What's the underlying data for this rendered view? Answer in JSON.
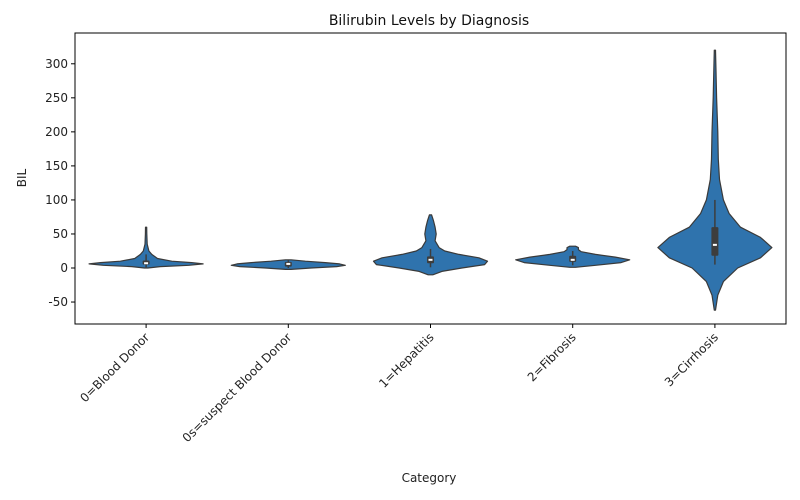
{
  "chart_data": {
    "type": "violin",
    "title": "Bilirubin Levels by Diagnosis",
    "xlabel": "Category",
    "ylabel": "BIL",
    "ylim": [
      -70,
      340
    ],
    "yticks": [
      -50,
      0,
      50,
      100,
      150,
      200,
      250,
      300
    ],
    "grid": false,
    "color": "#2f73ad",
    "categories": [
      "0=Blood Donor",
      "0s=suspect Blood Donor",
      "1=Hepatitis",
      "2=Fibrosis",
      "3=Cirrhosis"
    ],
    "series": [
      {
        "category": "0=Blood Donor",
        "median": 7,
        "q1": 5,
        "q3": 11,
        "whisker_low": 1,
        "whisker_high": 20,
        "min": 0,
        "max": 60,
        "profile": [
          [
            0,
            0.03
          ],
          [
            2,
            0.25
          ],
          [
            4,
            0.75
          ],
          [
            6,
            1.0
          ],
          [
            8,
            0.8
          ],
          [
            10,
            0.45
          ],
          [
            14,
            0.2
          ],
          [
            20,
            0.1
          ],
          [
            25,
            0.05
          ],
          [
            35,
            0.02
          ],
          [
            50,
            0.012
          ],
          [
            60,
            0.01
          ]
        ]
      },
      {
        "category": "0s=suspect Blood Donor",
        "median": 6,
        "q1": 2,
        "q3": 9,
        "whisker_low": 0,
        "whisker_high": 11,
        "min": -2,
        "max": 12,
        "profile": [
          [
            -2,
            0.05
          ],
          [
            0,
            0.4
          ],
          [
            2,
            0.85
          ],
          [
            4,
            1.0
          ],
          [
            6,
            0.9
          ],
          [
            8,
            0.65
          ],
          [
            10,
            0.3
          ],
          [
            12,
            0.05
          ]
        ]
      },
      {
        "category": "1=Hepatitis",
        "median": 12,
        "q1": 7,
        "q3": 17,
        "whisker_low": 1,
        "whisker_high": 28,
        "min": -10,
        "max": 78,
        "profile": [
          [
            -10,
            0.04
          ],
          [
            -5,
            0.2
          ],
          [
            0,
            0.55
          ],
          [
            5,
            0.95
          ],
          [
            10,
            1.0
          ],
          [
            15,
            0.85
          ],
          [
            20,
            0.5
          ],
          [
            25,
            0.25
          ],
          [
            30,
            0.15
          ],
          [
            40,
            0.08
          ],
          [
            50,
            0.1
          ],
          [
            60,
            0.08
          ],
          [
            70,
            0.05
          ],
          [
            78,
            0.02
          ]
        ]
      },
      {
        "category": "2=Fibrosis",
        "median": 12,
        "q1": 9,
        "q3": 18,
        "whisker_low": 4,
        "whisker_high": 25,
        "min": 1,
        "max": 32,
        "profile": [
          [
            1,
            0.05
          ],
          [
            4,
            0.4
          ],
          [
            8,
            0.85
          ],
          [
            12,
            1.0
          ],
          [
            16,
            0.75
          ],
          [
            20,
            0.4
          ],
          [
            24,
            0.15
          ],
          [
            27,
            0.1
          ],
          [
            30,
            0.1
          ],
          [
            32,
            0.05
          ]
        ]
      },
      {
        "category": "3=Cirrhosis",
        "median": 34,
        "q1": 18,
        "q3": 60,
        "whisker_low": 5,
        "whisker_high": 100,
        "min": -62,
        "max": 320,
        "profile": [
          [
            -62,
            0.01
          ],
          [
            -40,
            0.05
          ],
          [
            -20,
            0.15
          ],
          [
            0,
            0.4
          ],
          [
            15,
            0.8
          ],
          [
            30,
            1.0
          ],
          [
            45,
            0.8
          ],
          [
            60,
            0.45
          ],
          [
            80,
            0.25
          ],
          [
            100,
            0.15
          ],
          [
            130,
            0.08
          ],
          [
            160,
            0.06
          ],
          [
            200,
            0.05
          ],
          [
            250,
            0.03
          ],
          [
            290,
            0.02
          ],
          [
            320,
            0.01
          ]
        ]
      }
    ]
  }
}
